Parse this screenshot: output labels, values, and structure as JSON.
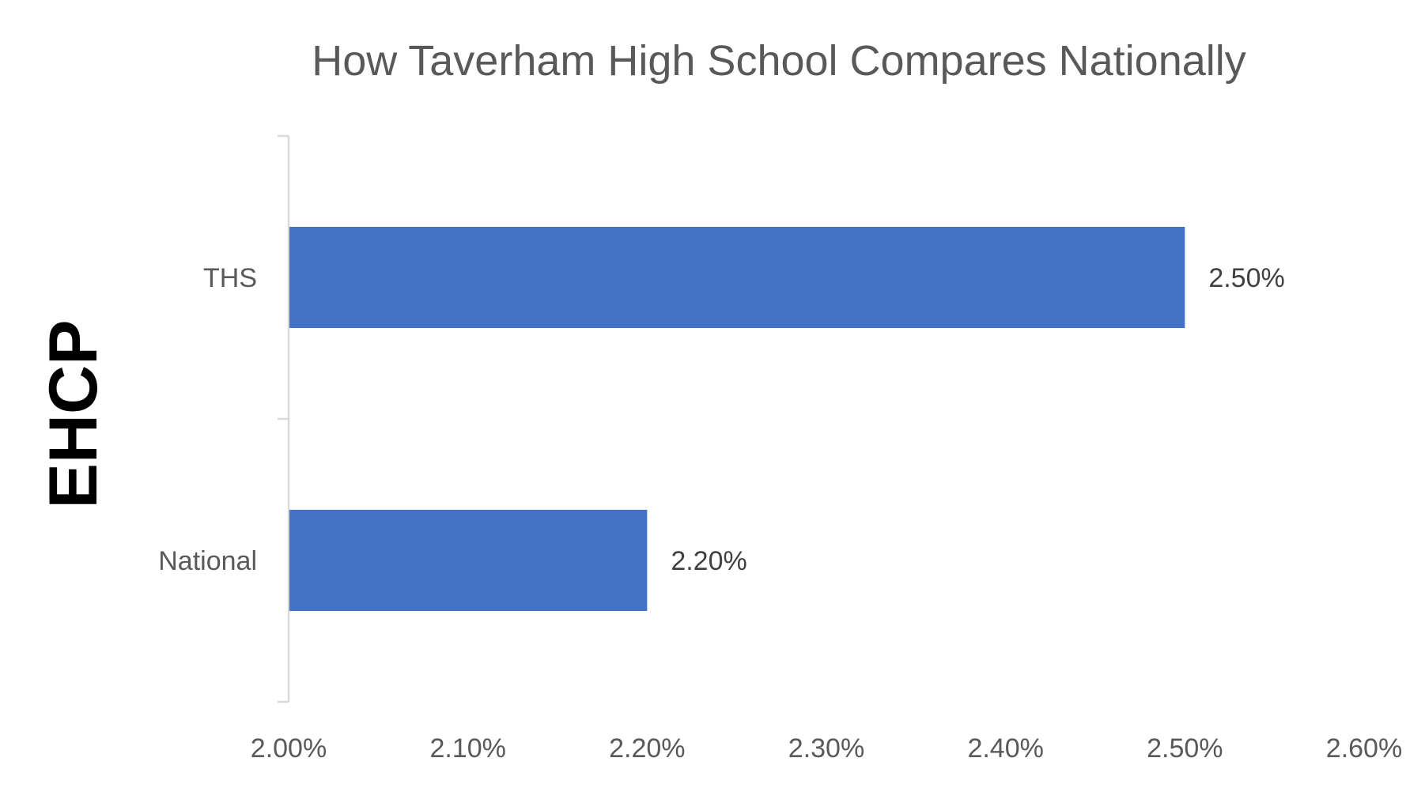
{
  "chart_data": {
    "type": "bar",
    "orientation": "horizontal",
    "title": "How Taverham High School Compares Nationally",
    "ylabel": "EHCP",
    "xlabel": "",
    "categories": [
      "THS",
      "National"
    ],
    "values": [
      0.025,
      0.022
    ],
    "data_labels": [
      "2.50%",
      "2.20%"
    ],
    "xlim": [
      0.02,
      0.026
    ],
    "x_ticks": [
      0.02,
      0.021,
      0.022,
      0.023,
      0.024,
      0.025,
      0.026
    ],
    "x_tick_labels": [
      "2.00%",
      "2.10%",
      "2.20%",
      "2.30%",
      "2.40%",
      "2.50%",
      "2.60%"
    ],
    "grid": false,
    "legend": "none",
    "bar_color": "#4472C4",
    "axis_color": "#D9D9D9",
    "title_color": "#595959",
    "tick_label_color": "#595959",
    "data_label_color": "#404040",
    "ylabel_color": "#000000"
  }
}
